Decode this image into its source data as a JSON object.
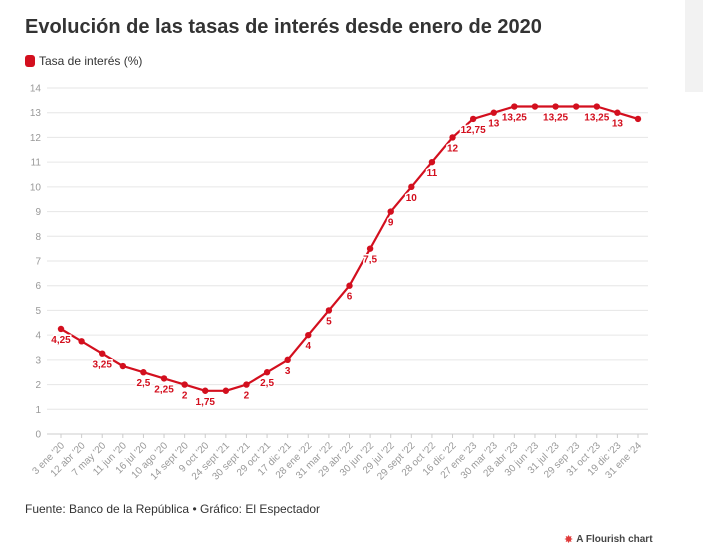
{
  "header": {
    "title": "Evolución de las tasas de interés desde enero de 2020"
  },
  "legend": {
    "label": "Tasa de interés (%)",
    "color": "#d30f1e"
  },
  "footer": {
    "source": "Fuente: Banco de la República • Gráfico: El Espectador",
    "credit": "A Flourish chart",
    "credit_icon": "flourish-logo-icon"
  },
  "chart_data": {
    "type": "line",
    "title": "Evolución de las tasas de interés desde enero de 2020",
    "xlabel": "",
    "ylabel": "",
    "ylim": [
      0,
      14
    ],
    "yticks": [
      0,
      1,
      2,
      3,
      4,
      5,
      6,
      7,
      8,
      9,
      10,
      11,
      12,
      13,
      14
    ],
    "grid": true,
    "legend_position": "top-left",
    "categories": [
      "3 ene '20",
      "12 abr '20",
      "7 may '20",
      "11 jun '20",
      "16 jul '20",
      "10 ago '20",
      "14 sept '20",
      "9 oct '20",
      "24 sept '21",
      "30 sept '21",
      "29 oct '21",
      "17 dic '21",
      "28 ene '22",
      "31 mar '22",
      "29 abr '22",
      "30 jun '22",
      "29 jul '22",
      "29 sept '22",
      "28 oct '22",
      "16 dic '22",
      "27 ene '23",
      "30 mar '23",
      "28 abr '23",
      "30 jun '23",
      "31 jul '23",
      "29 sep '23",
      "31 oct '23",
      "19 dic '23",
      "31 ene '24"
    ],
    "series": [
      {
        "name": "Tasa de interés (%)",
        "color": "#d30f1e",
        "values": [
          4.25,
          3.75,
          3.25,
          2.75,
          2.5,
          2.25,
          2,
          1.75,
          1.75,
          2,
          2.5,
          3,
          4,
          5,
          6,
          7.5,
          9,
          10,
          11,
          12,
          12.75,
          13,
          13.25,
          13.25,
          13.25,
          13.25,
          13.25,
          13,
          12.75
        ]
      }
    ],
    "data_labels": [
      {
        "index": 0,
        "text": "4,25"
      },
      {
        "index": 2,
        "text": "3,25"
      },
      {
        "index": 4,
        "text": "2,5"
      },
      {
        "index": 5,
        "text": "2,25"
      },
      {
        "index": 6,
        "text": "2"
      },
      {
        "index": 7,
        "text": "1,75"
      },
      {
        "index": 9,
        "text": "2"
      },
      {
        "index": 10,
        "text": "2,5"
      },
      {
        "index": 11,
        "text": "3"
      },
      {
        "index": 12,
        "text": "4"
      },
      {
        "index": 13,
        "text": "5"
      },
      {
        "index": 14,
        "text": "6"
      },
      {
        "index": 15,
        "text": "7,5"
      },
      {
        "index": 16,
        "text": "9"
      },
      {
        "index": 17,
        "text": "10"
      },
      {
        "index": 18,
        "text": "11"
      },
      {
        "index": 19,
        "text": "12"
      },
      {
        "index": 20,
        "text": "12,75"
      },
      {
        "index": 21,
        "text": "13"
      },
      {
        "index": 22,
        "text": "13,25"
      },
      {
        "index": 24,
        "text": "13,25"
      },
      {
        "index": 26,
        "text": "13,25"
      },
      {
        "index": 27,
        "text": "13"
      }
    ]
  }
}
